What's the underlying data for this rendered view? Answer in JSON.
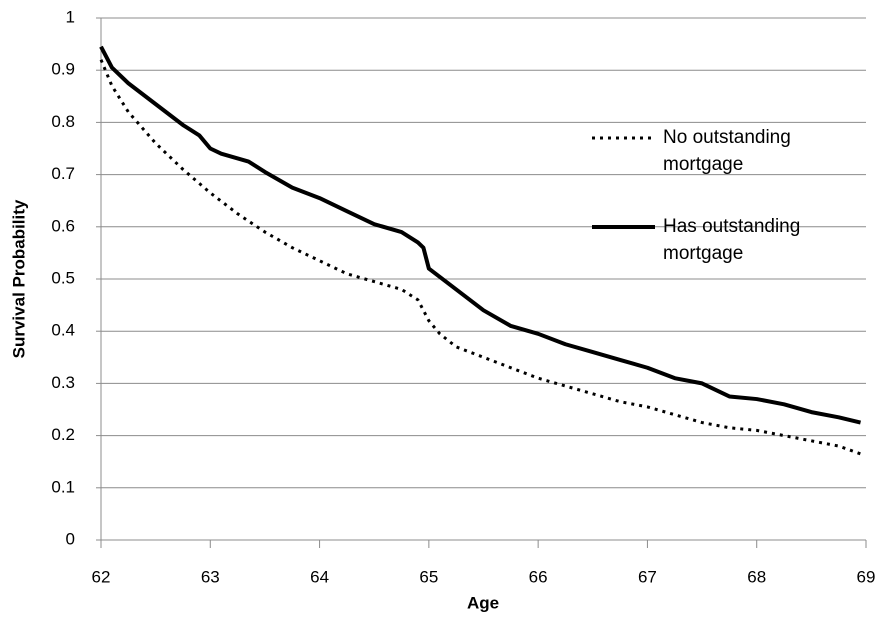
{
  "chart_data": {
    "type": "line",
    "x_label": "Age",
    "y_label": "Survival Probability",
    "xlim": [
      62,
      69
    ],
    "xticks": [
      62,
      63,
      64,
      65,
      66,
      67,
      68,
      69
    ],
    "ylim": [
      0,
      1
    ],
    "yticks": [
      0,
      0.1,
      0.2,
      0.3,
      0.4,
      0.5,
      0.6,
      0.7,
      0.8,
      0.9,
      1
    ],
    "grid": true,
    "series": [
      {
        "name": "No outstanding mortgage",
        "color": "#000000",
        "dash": "dotted",
        "x": [
          62,
          62.1,
          62.25,
          62.5,
          62.75,
          63,
          63.25,
          63.5,
          63.75,
          64,
          64.25,
          64.5,
          64.75,
          64.9,
          65,
          65.1,
          65.25,
          65.5,
          65.75,
          66,
          66.25,
          66.5,
          66.75,
          67,
          67.25,
          67.5,
          67.75,
          68,
          68.25,
          68.5,
          68.75,
          68.95
        ],
        "values": [
          0.92,
          0.87,
          0.82,
          0.76,
          0.71,
          0.665,
          0.625,
          0.59,
          0.56,
          0.535,
          0.51,
          0.495,
          0.48,
          0.46,
          0.42,
          0.395,
          0.37,
          0.35,
          0.33,
          0.31,
          0.295,
          0.28,
          0.265,
          0.255,
          0.24,
          0.225,
          0.215,
          0.21,
          0.2,
          0.19,
          0.18,
          0.165
        ]
      },
      {
        "name": "Has outstanding mortgage",
        "color": "#000000",
        "dash": "solid",
        "x": [
          62,
          62.1,
          62.25,
          62.5,
          62.75,
          62.9,
          63,
          63.1,
          63.35,
          63.5,
          63.75,
          64,
          64.25,
          64.5,
          64.75,
          64.9,
          64.95,
          65,
          65.25,
          65.5,
          65.75,
          66,
          66.25,
          66.5,
          66.75,
          67,
          67.25,
          67.5,
          67.75,
          68,
          68.25,
          68.5,
          68.75,
          68.95
        ],
        "values": [
          0.945,
          0.905,
          0.875,
          0.835,
          0.795,
          0.775,
          0.75,
          0.74,
          0.725,
          0.705,
          0.675,
          0.655,
          0.63,
          0.605,
          0.59,
          0.57,
          0.56,
          0.52,
          0.48,
          0.44,
          0.41,
          0.395,
          0.375,
          0.36,
          0.345,
          0.33,
          0.31,
          0.3,
          0.275,
          0.27,
          0.26,
          0.245,
          0.235,
          0.225
        ]
      }
    ]
  }
}
